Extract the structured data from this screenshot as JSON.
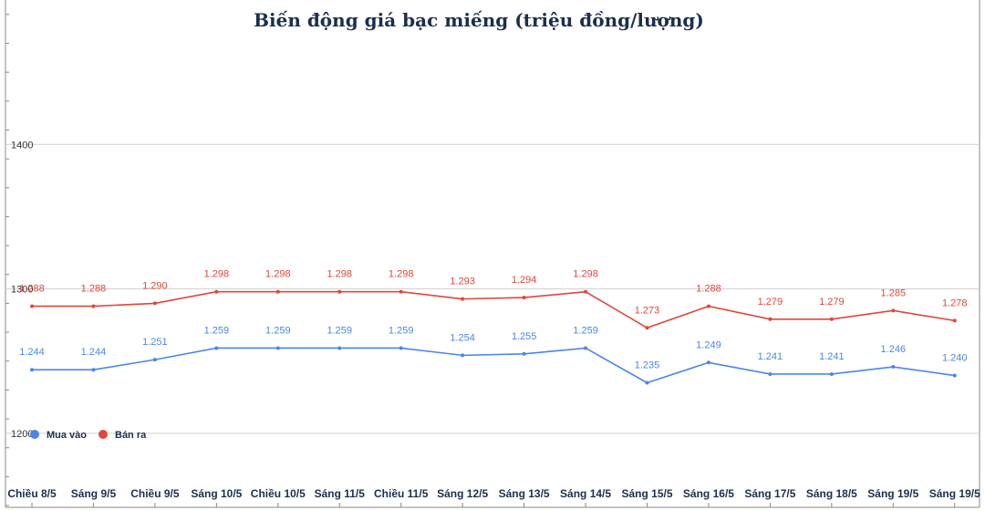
{
  "chart_data": {
    "type": "line",
    "title": "Biến động giá bạc miếng (triệu đồng/lượng)",
    "categories": [
      "Chiều 8/5",
      "Sáng 9/5",
      "Chiều 9/5",
      "Sáng 10/5",
      "Chiều 10/5",
      "Sáng 11/5",
      "Chiều 11/5",
      "Sáng 12/5",
      "Sáng 13/5",
      "Sáng 14/5",
      "Sáng 15/5",
      "Sáng 16/5",
      "Sáng 17/5",
      "Sáng 18/5",
      "Sáng 19/5",
      "Sáng 19/5"
    ],
    "series": [
      {
        "name": "Mua vào",
        "color": "#4a86e8",
        "values": [
          1244,
          1244,
          1251,
          1259,
          1259,
          1259,
          1259,
          1254,
          1255,
          1259,
          1235,
          1249,
          1241,
          1241,
          1246,
          1240
        ],
        "labels": [
          "1.244",
          "1.244",
          "1.251",
          "1.259",
          "1.259",
          "1.259",
          "1.259",
          "1.254",
          "1.255",
          "1.259",
          "1.235",
          "1.249",
          "1.241",
          "1.241",
          "1.246",
          "1.240"
        ]
      },
      {
        "name": "Bán ra",
        "color": "#e0463a",
        "values": [
          1288,
          1288,
          1290,
          1298,
          1298,
          1298,
          1298,
          1293,
          1294,
          1298,
          1273,
          1288,
          1279,
          1279,
          1285,
          1278
        ],
        "labels": [
          "1.288",
          "1.288",
          "1.290",
          "1.298",
          "1.298",
          "1.298",
          "1.298",
          "1.293",
          "1.294",
          "1.298",
          "1.273",
          "1.288",
          "1.279",
          "1.279",
          "1.285",
          "1.278"
        ]
      }
    ],
    "yticks": [
      "1400",
      "1300",
      "1200"
    ],
    "ytick_values": [
      1400,
      1300,
      1200
    ],
    "ylim": [
      1150,
      1500
    ],
    "grid": true,
    "legend": "bottom-left"
  }
}
